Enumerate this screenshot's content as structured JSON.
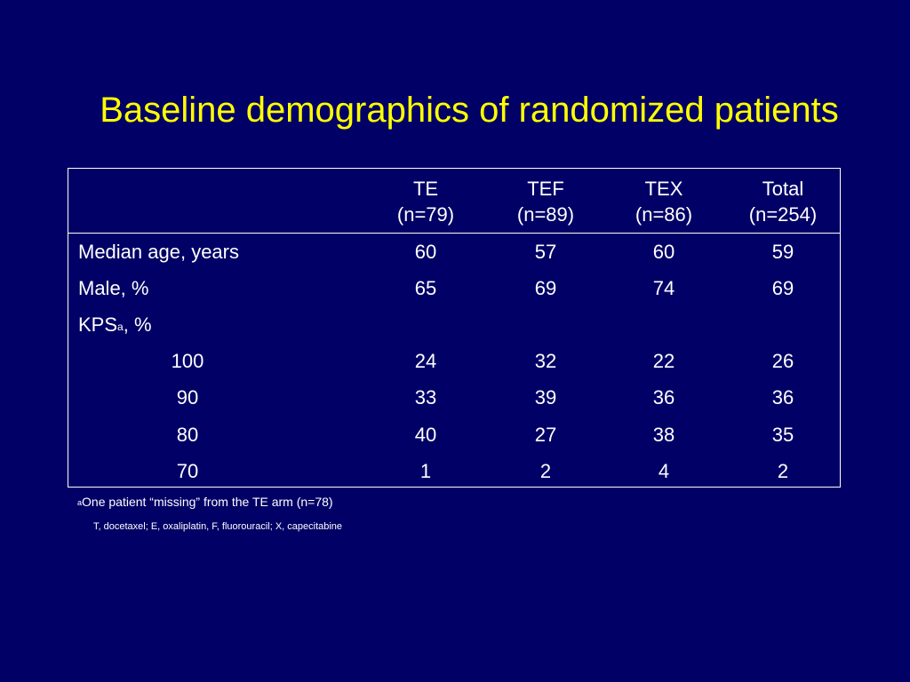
{
  "title": "Baseline demographics of randomized patients",
  "table": {
    "columns": [
      {
        "name": "TE",
        "n": "(n=79)"
      },
      {
        "name": "TEF",
        "n": "(n=89)"
      },
      {
        "name": "TEX",
        "n": "(n=86)"
      },
      {
        "name": "Total",
        "n": "(n=254)"
      }
    ],
    "rows": [
      {
        "label": "Median age, years",
        "values": [
          "60",
          "57",
          "60",
          "59"
        ]
      },
      {
        "label": "Male, %",
        "values": [
          "65",
          "69",
          "74",
          "69"
        ]
      },
      {
        "label": "KPS",
        "label_sup": "a",
        "label_suffix": ", %",
        "values": [
          "",
          "",
          "",
          ""
        ]
      },
      {
        "label": "100",
        "values": [
          "24",
          "32",
          "22",
          "26"
        ]
      },
      {
        "label": "90",
        "values": [
          "33",
          "39",
          "36",
          "36"
        ]
      },
      {
        "label": "80",
        "values": [
          "40",
          "27",
          "38",
          "35"
        ]
      },
      {
        "label": "70",
        "values": [
          "1",
          "2",
          "4",
          "2"
        ]
      }
    ]
  },
  "footnotes": {
    "note_a_marker": "a",
    "note_a": "One patient “missing” from the TE arm (n=78)",
    "abbreviations": "T, docetaxel; E, oxaliplatin, F, fluorouracil; X, capecitabine"
  }
}
